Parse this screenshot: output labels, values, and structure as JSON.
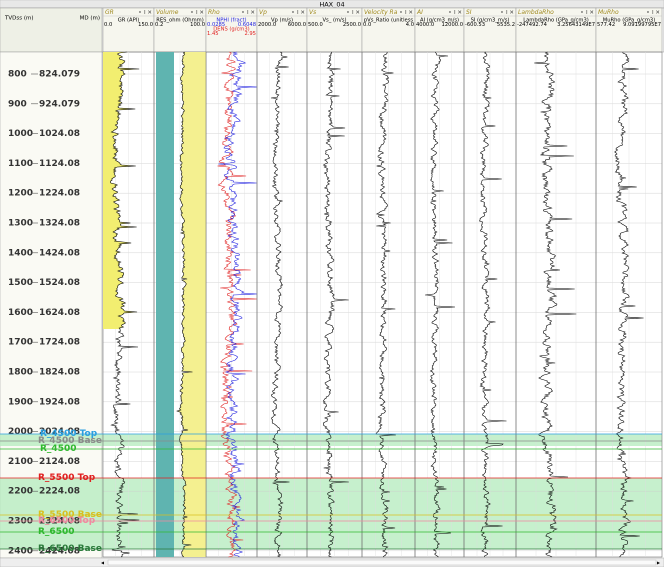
{
  "title": "HAX_04",
  "depth_headers": {
    "tvdss": "TVDss (m)",
    "md": "MD (m)"
  },
  "tracks": [
    {
      "name": "GR",
      "curves": [
        {
          "label": "GR (API)",
          "min": "0.0",
          "max": "150.0",
          "color": "#000000"
        }
      ]
    },
    {
      "name": "Volume",
      "curves": [
        {
          "label": "RES_ohm (Ohmm)",
          "min": "0.2",
          "max": "100.0",
          "color": "#000000"
        }
      ]
    },
    {
      "name": "Rho",
      "curves": [
        {
          "label": "NPHI (fract)",
          "min": "0.0285",
          "max": "0.6048",
          "color": "#1f1fe0"
        },
        {
          "label": "DENS (g/cm3)",
          "min": "1.45",
          "max": "2.95",
          "color": "#e01f1f"
        }
      ]
    },
    {
      "name": "Vp",
      "curves": [
        {
          "label": "Vp (m/s)",
          "min": "2000.0",
          "max": "6000.0",
          "color": "#000000"
        }
      ]
    },
    {
      "name": "Vs",
      "curves": [
        {
          "label": "Vs_ (m/s)",
          "min": "500.0",
          "max": "2500.0",
          "color": "#000000"
        }
      ]
    },
    {
      "name": "Velocity Ra",
      "curves": [
        {
          "label": "pVs_Ratio (unitless",
          "min": "0.0",
          "max": "4.0",
          "color": "#000000"
        }
      ]
    },
    {
      "name": "AI",
      "curves": [
        {
          "label": "AI (g/cm3_m/s)",
          "min": "4000.0",
          "max": "12000.0",
          "color": "#000000"
        }
      ]
    },
    {
      "name": "SI",
      "curves": [
        {
          "label": "SI (g/cm3_m/s)",
          "min": "-600.53",
          "max": "5535.2",
          "color": "#000000"
        }
      ]
    },
    {
      "name": "LambdaRho",
      "curves": [
        {
          "label": "LambdaRho (GPa_g/cm3)",
          "min": "-247492.74",
          "max": "3.25643149E7",
          "color": "#000000"
        }
      ]
    },
    {
      "name": "MuRho",
      "curves": [
        {
          "label": "MuRho (GPa_g/cm3)",
          "min": "577.42",
          "max": "9.09199795E7",
          "color": "#000000"
        }
      ]
    }
  ],
  "depths": [
    {
      "tvdss": "800",
      "md": "824.079"
    },
    {
      "tvdss": "900",
      "md": "924.079"
    },
    {
      "tvdss": "1000",
      "md": "1024.08"
    },
    {
      "tvdss": "1100",
      "md": "1124.08"
    },
    {
      "tvdss": "1200",
      "md": "1224.08"
    },
    {
      "tvdss": "1300",
      "md": "1324.08"
    },
    {
      "tvdss": "1400",
      "md": "1424.08"
    },
    {
      "tvdss": "1500",
      "md": "1524.08"
    },
    {
      "tvdss": "1600",
      "md": "1624.08"
    },
    {
      "tvdss": "1700",
      "md": "1724.08"
    },
    {
      "tvdss": "1800",
      "md": "1824.08"
    },
    {
      "tvdss": "1900",
      "md": "1924.08"
    },
    {
      "tvdss": "2000",
      "md": "2024.08"
    },
    {
      "tvdss": "2100",
      "md": "2124.08"
    },
    {
      "tvdss": "2200",
      "md": "2224.08"
    },
    {
      "tvdss": "2300",
      "md": "2324.08"
    },
    {
      "tvdss": "2400",
      "md": "2424.08"
    }
  ],
  "markers": [
    {
      "label": "R_4500 Top",
      "color": "#2a9fe0"
    },
    {
      "label": "R_4500 Base",
      "color": "#8a8a8a"
    },
    {
      "label": "R_4500",
      "color": "#2fb82f"
    },
    {
      "label": "R_5500 Top",
      "color": "#e02020"
    },
    {
      "label": "R_5500 Base",
      "color": "#d8c020"
    },
    {
      "label": "R_6500 Top",
      "color": "#f08aa0"
    },
    {
      "label": "R_6500",
      "color": "#2fb82f"
    },
    {
      "label": "R_6500 Base",
      "color": "#2a7a3a"
    }
  ]
}
